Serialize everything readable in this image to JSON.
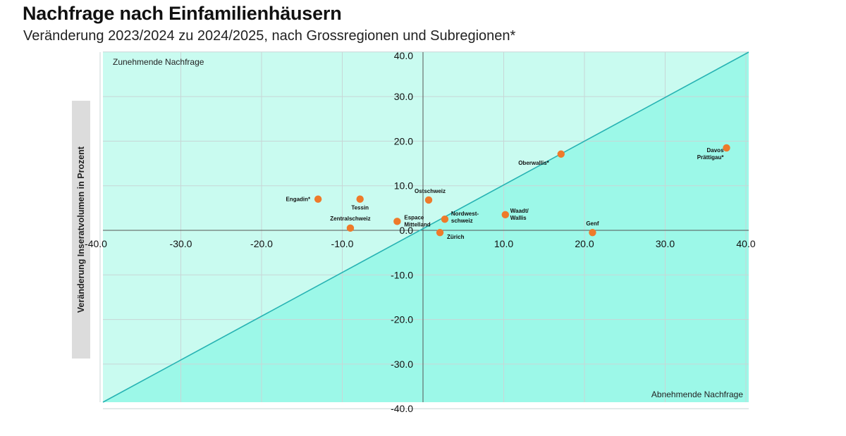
{
  "chart_data": {
    "type": "scatter",
    "title": "Nachfrage nach Einfamilienhäusern",
    "subtitle": "Veränderung 2023/2024 zu 2024/2025, nach Grossregionen und Subregionen*",
    "xlabel": "",
    "ylabel": "Veränderung Inseratvolumen in Prozent",
    "xlim": [
      -40,
      40
    ],
    "ylim": [
      -40,
      40
    ],
    "x_ticks": [
      "-40.0",
      "-30.0",
      "-20.0",
      "-10.0",
      "0.0",
      "10.0",
      "20.0",
      "30.0",
      "40.0"
    ],
    "y_ticks": [
      "40.0",
      "30.0",
      "20.0",
      "10.0",
      "0.0",
      "-10.0",
      "-20.0",
      "-30.0",
      "-40.0"
    ],
    "grid": true,
    "diagonal": "y = x",
    "zone_labels": {
      "upper_left": "Zunehmende Nachfrage",
      "lower_right": "Abnehmende Nachfrage"
    },
    "colors": {
      "upper_fill": "#c9fbf0",
      "lower_fill": "#9cf8e8",
      "diagonal": "#27b3b3",
      "point": "#ee7a2a",
      "grid": "#c8d6d6"
    },
    "points": [
      {
        "label": [
          "Engadin*"
        ],
        "x": -13.0,
        "y": 7.0
      },
      {
        "label": [
          "Tessin"
        ],
        "x": -7.8,
        "y": 7.0
      },
      {
        "label": [
          "Zentralschweiz"
        ],
        "x": -9.0,
        "y": 0.5
      },
      {
        "label": [
          "Espace",
          "Mittelland"
        ],
        "x": -3.2,
        "y": 2.0
      },
      {
        "label": [
          "Ostschweiz"
        ],
        "x": 0.7,
        "y": 6.8
      },
      {
        "label": [
          "Nordwest-",
          "schweiz"
        ],
        "x": 2.7,
        "y": 2.5
      },
      {
        "label": [
          "Zürich"
        ],
        "x": 2.1,
        "y": -0.5
      },
      {
        "label": [
          "Waadt/",
          "Wallis"
        ],
        "x": 10.2,
        "y": 3.5
      },
      {
        "label": [
          "Genf"
        ],
        "x": 21.0,
        "y": -0.5
      },
      {
        "label": [
          "Oberwallis*"
        ],
        "x": 17.1,
        "y": 17.1
      },
      {
        "label": [
          "Davos",
          "Prättigau*"
        ],
        "x": 37.6,
        "y": 18.5
      }
    ]
  }
}
